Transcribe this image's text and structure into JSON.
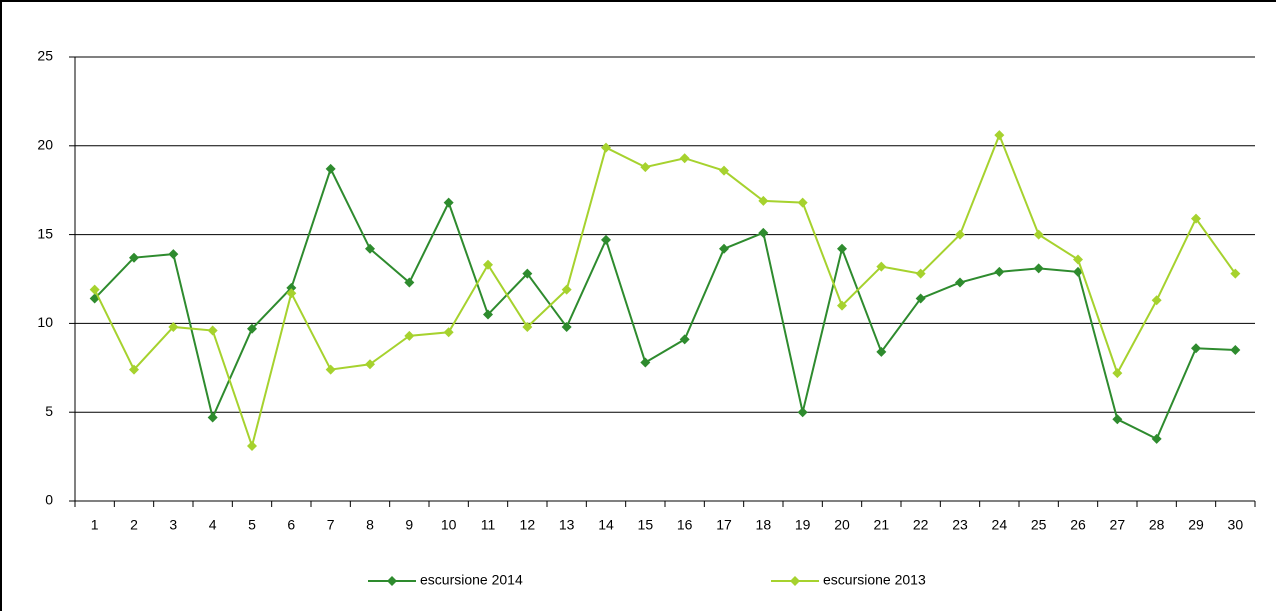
{
  "chart_data": {
    "type": "line",
    "categories": [
      "1",
      "2",
      "3",
      "4",
      "5",
      "6",
      "7",
      "8",
      "9",
      "10",
      "11",
      "12",
      "13",
      "14",
      "15",
      "16",
      "17",
      "18",
      "19",
      "20",
      "21",
      "22",
      "23",
      "24",
      "25",
      "26",
      "27",
      "28",
      "29",
      "30"
    ],
    "series": [
      {
        "name": "escursione 2014",
        "color": "#2e8b2e",
        "values": [
          11.4,
          13.7,
          13.9,
          4.7,
          9.7,
          12.0,
          18.7,
          14.2,
          12.3,
          16.8,
          10.5,
          12.8,
          9.8,
          14.7,
          7.8,
          9.1,
          14.2,
          15.1,
          5.0,
          14.2,
          8.4,
          11.4,
          12.3,
          12.9,
          13.1,
          12.9,
          4.6,
          3.5,
          8.6,
          8.5
        ]
      },
      {
        "name": "escursione 2013",
        "color": "#a6d22e",
        "values": [
          11.9,
          7.4,
          9.8,
          9.6,
          3.1,
          11.7,
          7.4,
          7.7,
          9.3,
          9.5,
          13.3,
          9.8,
          11.9,
          19.9,
          18.8,
          19.3,
          18.6,
          16.9,
          16.8,
          11.0,
          13.2,
          12.8,
          15.0,
          20.6,
          15.0,
          13.6,
          7.2,
          11.3,
          15.9,
          12.8
        ]
      }
    ],
    "ylim": [
      0,
      25
    ],
    "yticks": [
      0,
      5,
      10,
      15,
      20,
      25
    ],
    "grid": true
  }
}
